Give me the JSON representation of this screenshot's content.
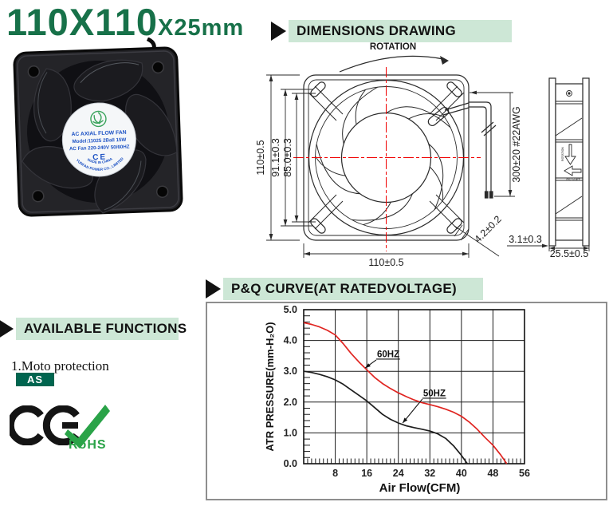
{
  "page": {
    "title_main": "110X110",
    "title_sub": "X25mm"
  },
  "sections": {
    "dimensions": {
      "label": "DIMENSIONS DRAWING"
    },
    "functions": {
      "label": "AVAILABLE FUNCTIONS"
    },
    "pq": {
      "label": "P&Q CURVE(AT RATEDVOLTAGE)"
    }
  },
  "product_photo": {
    "label_line1": "AC AXIAL FLOW FAN",
    "label_line2": "Model:11025 2Ball 15W",
    "label_line3": "AC Fan 220-240V 50/60HZ",
    "label_ce": "CE",
    "label_company": "YUNFAN POWER CO., LIMITED",
    "label_origin": "MADE IN CHINA"
  },
  "functions": {
    "item1": "1.Moto protection",
    "badge": "AS",
    "rohs": "RoHS"
  },
  "dimensions": {
    "rotation": "ROTATION",
    "height": "110±0.5",
    "hole_pitch": "91.1±0.3",
    "inner_span": "85.0±0.3",
    "width": "110±0.5",
    "wire": "300±20  #22AWG",
    "hole_dia": "4.2±0.2",
    "flange": "3.1±0.3",
    "depth": "25.5±0.5",
    "side_rotation": "ROTATION",
    "side_airflow": "AIR FLOW"
  },
  "chart_data": {
    "type": "line",
    "title": "P&Q CURVE(AT RATEDVOLTAGE)",
    "xlabel": "Air Flow(CFM)",
    "ylabel": "ATR PRESSURE(mm-H₂O)",
    "xlim": [
      0,
      56
    ],
    "ylim": [
      0,
      5
    ],
    "x_ticks": [
      8,
      16,
      24,
      32,
      40,
      48,
      56
    ],
    "y_ticks": [
      0.0,
      1.0,
      2.0,
      3.0,
      4.0,
      5.0
    ],
    "x_minor_step": 1,
    "y_minor_step": 0.2,
    "grid": true,
    "legend_position": "inline-annotations",
    "series": [
      {
        "name": "60HZ",
        "color": "#e02420",
        "x": [
          0,
          2,
          4,
          6,
          8,
          10,
          12,
          14,
          16,
          18,
          20,
          22,
          24,
          26,
          28,
          30,
          32,
          34,
          36,
          38,
          40,
          42,
          44,
          46,
          48,
          50,
          51.5
        ],
        "y": [
          4.58,
          4.52,
          4.44,
          4.33,
          4.18,
          3.9,
          3.58,
          3.3,
          3.05,
          2.8,
          2.6,
          2.44,
          2.3,
          2.18,
          2.07,
          1.98,
          1.92,
          1.85,
          1.77,
          1.67,
          1.54,
          1.35,
          1.12,
          0.85,
          0.6,
          0.28,
          0.0
        ],
        "label_pos": [
          18.6,
          3.46
        ],
        "arrow_tip": [
          15.6,
          3.11
        ]
      },
      {
        "name": "50HZ",
        "color": "#1d1d1d",
        "x": [
          0,
          2,
          4,
          6,
          8,
          10,
          12,
          14,
          16,
          18,
          20,
          22,
          24,
          26,
          28,
          30,
          32,
          34,
          36,
          38,
          40,
          41.5
        ],
        "y": [
          3.0,
          2.96,
          2.9,
          2.82,
          2.72,
          2.58,
          2.4,
          2.22,
          2.04,
          1.82,
          1.6,
          1.44,
          1.32,
          1.23,
          1.17,
          1.12,
          1.06,
          0.97,
          0.82,
          0.58,
          0.27,
          0.0
        ],
        "label_pos": [
          30.3,
          2.19
        ],
        "arrow_tip": [
          25.1,
          1.32
        ]
      }
    ]
  }
}
